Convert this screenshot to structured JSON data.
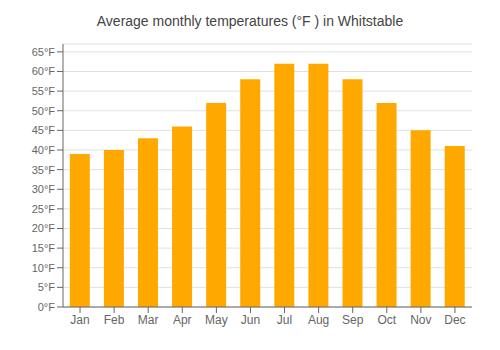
{
  "chart_data": {
    "type": "bar",
    "title": "Average monthly temperatures (°F ) in Whitstable",
    "categories": [
      "Jan",
      "Feb",
      "Mar",
      "Apr",
      "May",
      "Jun",
      "Jul",
      "Aug",
      "Sep",
      "Oct",
      "Nov",
      "Dec"
    ],
    "values": [
      39,
      40,
      43,
      46,
      52,
      58,
      62,
      62,
      58,
      52,
      45,
      41
    ],
    "color": "#FFA800",
    "ylim": [
      0,
      67
    ],
    "yticks": [
      {
        "value": 0,
        "label": "0°F"
      },
      {
        "value": 5,
        "label": "5°F"
      },
      {
        "value": 10,
        "label": "10°F"
      },
      {
        "value": 15,
        "label": "15°F"
      },
      {
        "value": 20,
        "label": "20°F"
      },
      {
        "value": 25,
        "label": "25°F"
      },
      {
        "value": 30,
        "label": "30°F"
      },
      {
        "value": 35,
        "label": "35°F"
      },
      {
        "value": 40,
        "label": "40°F"
      },
      {
        "value": 45,
        "label": "45°F"
      },
      {
        "value": 50,
        "label": "50°F"
      },
      {
        "value": 55,
        "label": "55°F"
      },
      {
        "value": 60,
        "label": "60°F"
      },
      {
        "value": 65,
        "label": "65°F"
      }
    ],
    "grid": true
  }
}
